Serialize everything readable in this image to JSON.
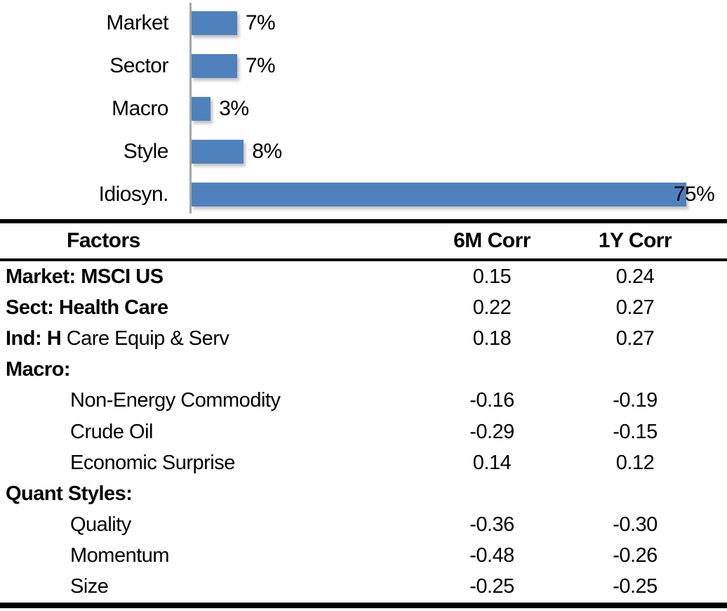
{
  "chart_data": [
    {
      "type": "bar",
      "orientation": "horizontal",
      "title": "",
      "categories": [
        "Market",
        "Sector",
        "Macro",
        "Style",
        "Idiosyn."
      ],
      "values": [
        7,
        7,
        3,
        8,
        75
      ],
      "value_labels": [
        "7%",
        "7%",
        "3%",
        "8%",
        "75%"
      ],
      "xlim": [
        0,
        75
      ],
      "grid": false,
      "legend": false,
      "bar_color": "#4F81BD",
      "axis_color": "#A6A6A6"
    },
    {
      "type": "table",
      "header": [
        "Factors",
        "6M Corr",
        "1Y Corr"
      ],
      "rows": [
        {
          "indent": 0,
          "segments": [
            {
              "text": "Market:",
              "bold": true
            },
            {
              "text": " MSCI US",
              "bold": true
            }
          ],
          "corr_6m": "0.15",
          "corr_1y": "0.24"
        },
        {
          "indent": 0,
          "segments": [
            {
              "text": "Sect:",
              "bold": true
            },
            {
              "text": " Health Care",
              "bold": true
            }
          ],
          "corr_6m": "0.22",
          "corr_1y": "0.27"
        },
        {
          "indent": 0,
          "segments": [
            {
              "text": "Ind: H",
              "bold": true
            },
            {
              "text": " Care Equip & Serv",
              "bold": false
            }
          ],
          "corr_6m": "0.18",
          "corr_1y": "0.27"
        },
        {
          "indent": 0,
          "segments": [
            {
              "text": "Macro:",
              "bold": true
            }
          ],
          "corr_6m": "",
          "corr_1y": ""
        },
        {
          "indent": 1,
          "segments": [
            {
              "text": "Non-Energy Commodity",
              "bold": false
            }
          ],
          "corr_6m": "-0.16",
          "corr_1y": "-0.19"
        },
        {
          "indent": 1,
          "segments": [
            {
              "text": "Crude Oil",
              "bold": false
            }
          ],
          "corr_6m": "-0.29",
          "corr_1y": "-0.15"
        },
        {
          "indent": 1,
          "segments": [
            {
              "text": "Economic Surprise",
              "bold": false
            }
          ],
          "corr_6m": "0.14",
          "corr_1y": "0.12"
        },
        {
          "indent": 0,
          "segments": [
            {
              "text": "Quant Styles:",
              "bold": true
            }
          ],
          "corr_6m": "",
          "corr_1y": ""
        },
        {
          "indent": 1,
          "segments": [
            {
              "text": "Quality",
              "bold": false
            }
          ],
          "corr_6m": "-0.36",
          "corr_1y": "-0.30"
        },
        {
          "indent": 1,
          "segments": [
            {
              "text": "Momentum",
              "bold": false
            }
          ],
          "corr_6m": "-0.48",
          "corr_1y": "-0.26"
        },
        {
          "indent": 1,
          "segments": [
            {
              "text": "Size",
              "bold": false
            }
          ],
          "corr_6m": "-0.25",
          "corr_1y": "-0.25"
        }
      ]
    }
  ],
  "colors": {
    "bar": "#4F81BD",
    "axis": "#A6A6A6",
    "text": "#000000",
    "border": "#000000",
    "background": "#FFFFFF"
  }
}
